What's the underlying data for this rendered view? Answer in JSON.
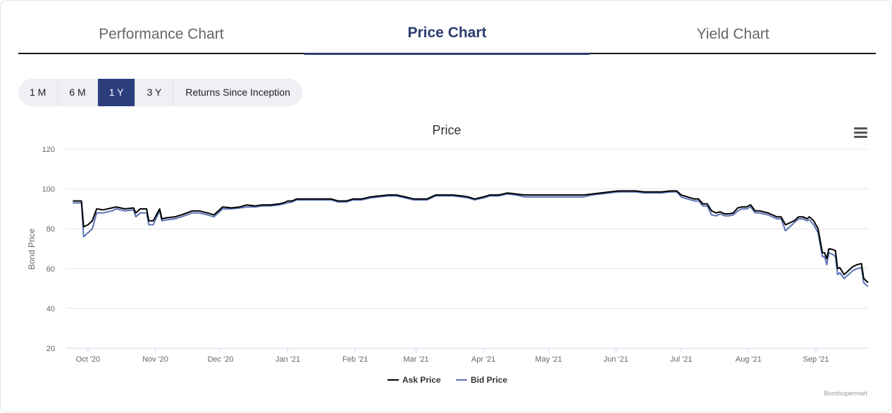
{
  "tabs": [
    {
      "label": "Performance Chart",
      "active": false
    },
    {
      "label": "Price Chart",
      "active": true
    },
    {
      "label": "Yield Chart",
      "active": false
    }
  ],
  "ranges": [
    {
      "label": "1 M",
      "active": false
    },
    {
      "label": "6 M",
      "active": false
    },
    {
      "label": "1 Y",
      "active": true
    },
    {
      "label": "3 Y",
      "active": false
    },
    {
      "label": "Returns Since Inception",
      "active": false
    }
  ],
  "menu_icon": "hamburger-menu-icon",
  "credit": "Bondsupermart",
  "colors": {
    "accent": "#2c3e7e",
    "ask": "#000000",
    "bid": "#5a72b5"
  },
  "chart_data": {
    "type": "line",
    "title": "Price",
    "ylabel": "Bond Price",
    "xlabel": "",
    "ylim": [
      20,
      120
    ],
    "yticks": [
      20,
      40,
      60,
      80,
      100,
      120
    ],
    "xlim": [
      "2020-09-21",
      "2021-09-25"
    ],
    "xticks": [
      {
        "date": "2020-10-01",
        "label": "Oct '20"
      },
      {
        "date": "2020-11-01",
        "label": "Nov '20"
      },
      {
        "date": "2020-12-01",
        "label": "Dec '20"
      },
      {
        "date": "2021-01-01",
        "label": "Jan '21"
      },
      {
        "date": "2021-02-01",
        "label": "Feb '21"
      },
      {
        "date": "2021-03-01",
        "label": "Mar '21"
      },
      {
        "date": "2021-04-01",
        "label": "Apr '21"
      },
      {
        "date": "2021-05-01",
        "label": "May '21"
      },
      {
        "date": "2021-06-01",
        "label": "Jun '21"
      },
      {
        "date": "2021-07-01",
        "label": "Jul '21"
      },
      {
        "date": "2021-08-01",
        "label": "Aug '21"
      },
      {
        "date": "2021-09-01",
        "label": "Sep '21"
      }
    ],
    "grid": true,
    "legend": "bottom-center",
    "series": [
      {
        "name": "Ask Price",
        "color": "#000000",
        "points": [
          [
            "2020-09-24",
            94
          ],
          [
            "2020-09-28",
            94
          ],
          [
            "2020-09-29",
            81
          ],
          [
            "2020-10-01",
            82
          ],
          [
            "2020-10-03",
            84
          ],
          [
            "2020-10-05",
            90
          ],
          [
            "2020-10-08",
            89.5
          ],
          [
            "2020-10-12",
            90.5
          ],
          [
            "2020-10-14",
            91
          ],
          [
            "2020-10-18",
            90
          ],
          [
            "2020-10-22",
            90.5
          ],
          [
            "2020-10-23",
            88
          ],
          [
            "2020-10-25",
            90
          ],
          [
            "2020-10-28",
            90
          ],
          [
            "2020-10-29",
            84
          ],
          [
            "2020-10-31",
            84
          ],
          [
            "2020-11-03",
            90
          ],
          [
            "2020-11-04",
            85
          ],
          [
            "2020-11-06",
            85.5
          ],
          [
            "2020-11-10",
            86
          ],
          [
            "2020-11-13",
            87
          ],
          [
            "2020-11-18",
            89
          ],
          [
            "2020-11-21",
            89
          ],
          [
            "2020-11-25",
            88
          ],
          [
            "2020-11-28",
            87
          ],
          [
            "2020-12-02",
            91
          ],
          [
            "2020-12-06",
            90.5
          ],
          [
            "2020-12-10",
            91
          ],
          [
            "2020-12-13",
            92
          ],
          [
            "2020-12-17",
            91.5
          ],
          [
            "2020-12-20",
            92
          ],
          [
            "2020-12-24",
            92
          ],
          [
            "2020-12-28",
            92.5
          ],
          [
            "2020-12-30",
            93
          ],
          [
            "2021-01-01",
            94
          ],
          [
            "2021-01-03",
            94
          ],
          [
            "2021-01-05",
            95
          ],
          [
            "2021-01-09",
            95
          ],
          [
            "2021-01-13",
            95
          ],
          [
            "2021-01-17",
            95
          ],
          [
            "2021-01-21",
            95
          ],
          [
            "2021-01-24",
            94
          ],
          [
            "2021-01-28",
            94
          ],
          [
            "2021-01-31",
            95
          ],
          [
            "2021-02-04",
            95
          ],
          [
            "2021-02-08",
            96
          ],
          [
            "2021-02-12",
            96.5
          ],
          [
            "2021-02-16",
            97
          ],
          [
            "2021-02-20",
            97
          ],
          [
            "2021-02-24",
            96
          ],
          [
            "2021-02-28",
            95
          ],
          [
            "2021-03-02",
            95
          ],
          [
            "2021-03-06",
            95
          ],
          [
            "2021-03-10",
            97
          ],
          [
            "2021-03-14",
            97
          ],
          [
            "2021-03-18",
            97
          ],
          [
            "2021-03-22",
            96.5
          ],
          [
            "2021-03-25",
            96
          ],
          [
            "2021-03-28",
            95
          ],
          [
            "2021-04-01",
            96
          ],
          [
            "2021-04-04",
            97
          ],
          [
            "2021-04-08",
            97
          ],
          [
            "2021-04-12",
            98
          ],
          [
            "2021-04-16",
            97.5
          ],
          [
            "2021-04-20",
            97
          ],
          [
            "2021-04-24",
            97
          ],
          [
            "2021-04-28",
            97
          ],
          [
            "2021-05-02",
            97
          ],
          [
            "2021-05-06",
            97
          ],
          [
            "2021-05-10",
            97
          ],
          [
            "2021-05-14",
            97
          ],
          [
            "2021-05-17",
            97
          ],
          [
            "2021-05-21",
            97.5
          ],
          [
            "2021-05-25",
            98
          ],
          [
            "2021-05-29",
            98.5
          ],
          [
            "2021-06-02",
            99
          ],
          [
            "2021-06-06",
            99
          ],
          [
            "2021-06-10",
            99
          ],
          [
            "2021-06-14",
            98.5
          ],
          [
            "2021-06-18",
            98.5
          ],
          [
            "2021-06-22",
            98.5
          ],
          [
            "2021-06-26",
            99
          ],
          [
            "2021-06-29",
            99
          ],
          [
            "2021-07-01",
            97
          ],
          [
            "2021-07-04",
            96
          ],
          [
            "2021-07-07",
            95
          ],
          [
            "2021-07-09",
            95
          ],
          [
            "2021-07-11",
            92.5
          ],
          [
            "2021-07-13",
            92.5
          ],
          [
            "2021-07-15",
            89
          ],
          [
            "2021-07-17",
            88
          ],
          [
            "2021-07-19",
            88.5
          ],
          [
            "2021-07-21",
            87.5
          ],
          [
            "2021-07-23",
            87.5
          ],
          [
            "2021-07-25",
            88
          ],
          [
            "2021-07-27",
            90.5
          ],
          [
            "2021-07-29",
            91
          ],
          [
            "2021-07-31",
            91
          ],
          [
            "2021-08-02",
            92
          ],
          [
            "2021-08-04",
            89
          ],
          [
            "2021-08-06",
            89
          ],
          [
            "2021-08-08",
            88.5
          ],
          [
            "2021-08-10",
            88
          ],
          [
            "2021-08-12",
            87
          ],
          [
            "2021-08-14",
            86
          ],
          [
            "2021-08-16",
            86
          ],
          [
            "2021-08-18",
            82
          ],
          [
            "2021-08-20",
            83
          ],
          [
            "2021-08-22",
            84
          ],
          [
            "2021-08-24",
            86
          ],
          [
            "2021-08-26",
            86
          ],
          [
            "2021-08-28",
            85
          ],
          [
            "2021-08-29",
            86
          ],
          [
            "2021-08-31",
            84
          ],
          [
            "2021-09-02",
            80
          ],
          [
            "2021-09-04",
            68
          ],
          [
            "2021-09-05",
            68
          ],
          [
            "2021-09-06",
            65
          ],
          [
            "2021-09-07",
            70
          ],
          [
            "2021-09-09",
            69.5
          ],
          [
            "2021-09-10",
            69
          ],
          [
            "2021-09-11",
            60
          ],
          [
            "2021-09-12",
            60.5
          ],
          [
            "2021-09-14",
            57
          ],
          [
            "2021-09-16",
            59
          ],
          [
            "2021-09-18",
            61
          ],
          [
            "2021-09-20",
            62
          ],
          [
            "2021-09-22",
            62.5
          ],
          [
            "2021-09-23",
            55
          ],
          [
            "2021-09-25",
            53
          ]
        ]
      },
      {
        "name": "Bid Price",
        "color": "#5a72b5",
        "points": [
          [
            "2020-09-24",
            93
          ],
          [
            "2020-09-28",
            93
          ],
          [
            "2020-09-29",
            76
          ],
          [
            "2020-10-01",
            78
          ],
          [
            "2020-10-03",
            80
          ],
          [
            "2020-10-05",
            88
          ],
          [
            "2020-10-08",
            88
          ],
          [
            "2020-10-12",
            89
          ],
          [
            "2020-10-14",
            90
          ],
          [
            "2020-10-18",
            89
          ],
          [
            "2020-10-22",
            89.5
          ],
          [
            "2020-10-23",
            86
          ],
          [
            "2020-10-25",
            88
          ],
          [
            "2020-10-28",
            88
          ],
          [
            "2020-10-29",
            82
          ],
          [
            "2020-10-31",
            82
          ],
          [
            "2020-11-03",
            89
          ],
          [
            "2020-11-04",
            84
          ],
          [
            "2020-11-06",
            84.5
          ],
          [
            "2020-11-10",
            85
          ],
          [
            "2020-11-13",
            86
          ],
          [
            "2020-11-18",
            88
          ],
          [
            "2020-11-21",
            88
          ],
          [
            "2020-11-25",
            87
          ],
          [
            "2020-11-28",
            86
          ],
          [
            "2020-12-02",
            90
          ],
          [
            "2020-12-06",
            90
          ],
          [
            "2020-12-10",
            90.5
          ],
          [
            "2020-12-13",
            91
          ],
          [
            "2020-12-17",
            91
          ],
          [
            "2020-12-20",
            91.5
          ],
          [
            "2020-12-24",
            91.5
          ],
          [
            "2020-12-28",
            92
          ],
          [
            "2020-12-30",
            92.5
          ],
          [
            "2021-01-01",
            93
          ],
          [
            "2021-01-03",
            93.5
          ],
          [
            "2021-01-05",
            94.5
          ],
          [
            "2021-01-09",
            94.5
          ],
          [
            "2021-01-13",
            94.5
          ],
          [
            "2021-01-17",
            94.5
          ],
          [
            "2021-01-21",
            94.5
          ],
          [
            "2021-01-24",
            93.5
          ],
          [
            "2021-01-28",
            93.5
          ],
          [
            "2021-01-31",
            94.5
          ],
          [
            "2021-02-04",
            94.5
          ],
          [
            "2021-02-08",
            95.5
          ],
          [
            "2021-02-12",
            96
          ],
          [
            "2021-02-16",
            96.5
          ],
          [
            "2021-02-20",
            96.5
          ],
          [
            "2021-02-24",
            95.5
          ],
          [
            "2021-02-28",
            94.5
          ],
          [
            "2021-03-02",
            94.5
          ],
          [
            "2021-03-06",
            94.5
          ],
          [
            "2021-03-10",
            96.5
          ],
          [
            "2021-03-14",
            96.5
          ],
          [
            "2021-03-18",
            96.5
          ],
          [
            "2021-03-22",
            96
          ],
          [
            "2021-03-25",
            95.5
          ],
          [
            "2021-03-28",
            94.5
          ],
          [
            "2021-04-01",
            95.5
          ],
          [
            "2021-04-04",
            96.5
          ],
          [
            "2021-04-08",
            96.5
          ],
          [
            "2021-04-12",
            97.5
          ],
          [
            "2021-04-16",
            97
          ],
          [
            "2021-04-20",
            96
          ],
          [
            "2021-04-24",
            96
          ],
          [
            "2021-04-28",
            96
          ],
          [
            "2021-05-02",
            96
          ],
          [
            "2021-05-06",
            96
          ],
          [
            "2021-05-10",
            96
          ],
          [
            "2021-05-14",
            96
          ],
          [
            "2021-05-17",
            96
          ],
          [
            "2021-05-21",
            97
          ],
          [
            "2021-05-25",
            97.5
          ],
          [
            "2021-05-29",
            98
          ],
          [
            "2021-06-02",
            98.5
          ],
          [
            "2021-06-06",
            98.5
          ],
          [
            "2021-06-10",
            98.5
          ],
          [
            "2021-06-14",
            98
          ],
          [
            "2021-06-18",
            98
          ],
          [
            "2021-06-22",
            98
          ],
          [
            "2021-06-26",
            98.5
          ],
          [
            "2021-06-29",
            98.5
          ],
          [
            "2021-07-01",
            96
          ],
          [
            "2021-07-04",
            95
          ],
          [
            "2021-07-07",
            94
          ],
          [
            "2021-07-09",
            94
          ],
          [
            "2021-07-11",
            91.5
          ],
          [
            "2021-07-13",
            91.5
          ],
          [
            "2021-07-15",
            87
          ],
          [
            "2021-07-17",
            86.5
          ],
          [
            "2021-07-19",
            87.5
          ],
          [
            "2021-07-21",
            86.5
          ],
          [
            "2021-07-23",
            86.5
          ],
          [
            "2021-07-25",
            87
          ],
          [
            "2021-07-27",
            89
          ],
          [
            "2021-07-29",
            90
          ],
          [
            "2021-07-31",
            90
          ],
          [
            "2021-08-02",
            91
          ],
          [
            "2021-08-04",
            88
          ],
          [
            "2021-08-06",
            88
          ],
          [
            "2021-08-08",
            87.5
          ],
          [
            "2021-08-10",
            87
          ],
          [
            "2021-08-12",
            86
          ],
          [
            "2021-08-14",
            85
          ],
          [
            "2021-08-16",
            85
          ],
          [
            "2021-08-18",
            79
          ],
          [
            "2021-08-20",
            81
          ],
          [
            "2021-08-22",
            83
          ],
          [
            "2021-08-24",
            85
          ],
          [
            "2021-08-26",
            85
          ],
          [
            "2021-08-28",
            84
          ],
          [
            "2021-08-29",
            84.5
          ],
          [
            "2021-08-31",
            82
          ],
          [
            "2021-09-02",
            78
          ],
          [
            "2021-09-04",
            66
          ],
          [
            "2021-09-05",
            66
          ],
          [
            "2021-09-06",
            62
          ],
          [
            "2021-09-07",
            68
          ],
          [
            "2021-09-09",
            67
          ],
          [
            "2021-09-10",
            66
          ],
          [
            "2021-09-11",
            57
          ],
          [
            "2021-09-12",
            58
          ],
          [
            "2021-09-14",
            55
          ],
          [
            "2021-09-16",
            57
          ],
          [
            "2021-09-18",
            59
          ],
          [
            "2021-09-20",
            60
          ],
          [
            "2021-09-22",
            60.5
          ],
          [
            "2021-09-23",
            53
          ],
          [
            "2021-09-25",
            51
          ]
        ]
      }
    ]
  }
}
